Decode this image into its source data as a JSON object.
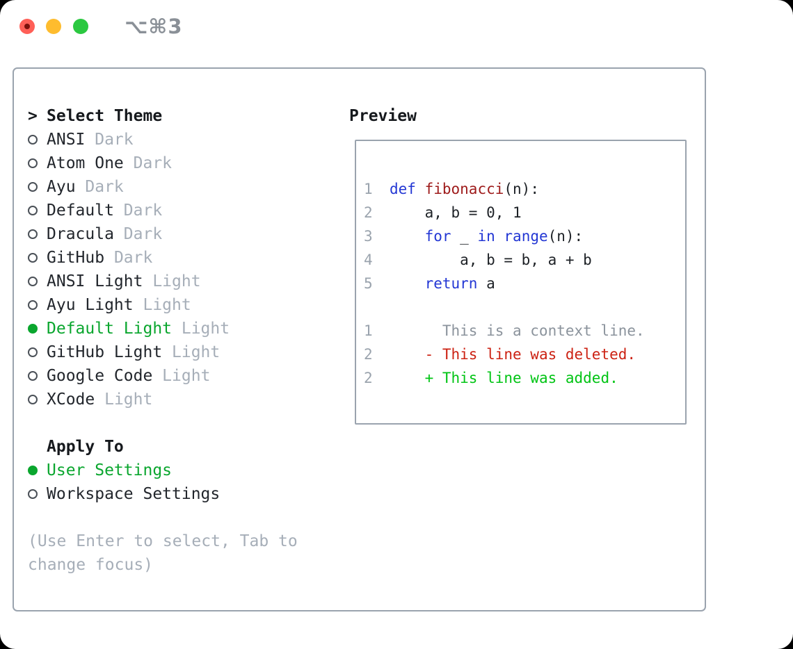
{
  "titlebar": {
    "shortcut": "⌥⌘3",
    "traffic_lights": [
      "close-red",
      "minimize-yellow",
      "zoom-green"
    ]
  },
  "colors": {
    "selection_green": "#0aa62e",
    "added_green": "#00c414",
    "deleted_red": "#cc2213",
    "keyword_blue": "#2337d4",
    "function_red": "#9e1b1b",
    "muted_gray": "#a6aeb8",
    "line_number_gray": "#9aa3ad",
    "panel_border": "#9aa3ae",
    "traffic_red": "#ff5f57",
    "traffic_yellow": "#febc2e",
    "traffic_green": "#2bc840"
  },
  "theme_picker": {
    "heading_marker": ">",
    "heading": "Select Theme",
    "themes": [
      {
        "name": "ANSI",
        "variant": "Dark",
        "selected": false
      },
      {
        "name": "Atom One",
        "variant": "Dark",
        "selected": false
      },
      {
        "name": "Ayu",
        "variant": "Dark",
        "selected": false
      },
      {
        "name": "Default",
        "variant": "Dark",
        "selected": false
      },
      {
        "name": "Dracula",
        "variant": "Dark",
        "selected": false
      },
      {
        "name": "GitHub",
        "variant": "Dark",
        "selected": false
      },
      {
        "name": "ANSI Light",
        "variant": "Light",
        "selected": false
      },
      {
        "name": "Ayu Light",
        "variant": "Light",
        "selected": false
      },
      {
        "name": "Default Light",
        "variant": "Light",
        "selected": true
      },
      {
        "name": "GitHub Light",
        "variant": "Light",
        "selected": false
      },
      {
        "name": "Google Code",
        "variant": "Light",
        "selected": false
      },
      {
        "name": "XCode",
        "variant": "Light",
        "selected": false
      }
    ]
  },
  "apply_to": {
    "heading": "Apply To",
    "options": [
      {
        "label": "User Settings",
        "selected": true
      },
      {
        "label": "Workspace Settings",
        "selected": false
      }
    ]
  },
  "hint_lines": [
    "(Use Enter to select, Tab to",
    "change focus)"
  ],
  "preview": {
    "heading": "Preview",
    "code_lines": [
      {
        "num": "1",
        "segments": [
          {
            "t": "def",
            "c": "keyword"
          },
          {
            "t": " ",
            "c": "plain"
          },
          {
            "t": "fibonacci",
            "c": "function"
          },
          {
            "t": "(n):",
            "c": "plain"
          }
        ]
      },
      {
        "num": "2",
        "segments": [
          {
            "t": "    a, b = 0, 1",
            "c": "plain"
          }
        ]
      },
      {
        "num": "3",
        "segments": [
          {
            "t": "    ",
            "c": "plain"
          },
          {
            "t": "for",
            "c": "keyword"
          },
          {
            "t": " _ ",
            "c": "plain"
          },
          {
            "t": "in",
            "c": "keyword"
          },
          {
            "t": " ",
            "c": "plain"
          },
          {
            "t": "range",
            "c": "keyword"
          },
          {
            "t": "(n):",
            "c": "plain"
          }
        ]
      },
      {
        "num": "4",
        "segments": [
          {
            "t": "        a, b = b, a + b",
            "c": "plain"
          }
        ]
      },
      {
        "num": "5",
        "segments": [
          {
            "t": "    ",
            "c": "plain"
          },
          {
            "t": "return",
            "c": "keyword"
          },
          {
            "t": " a",
            "c": "plain"
          }
        ]
      },
      {
        "num": "",
        "segments": []
      },
      {
        "num": "1",
        "segments": [
          {
            "t": "      This is a context line.",
            "c": "context"
          }
        ]
      },
      {
        "num": "2",
        "segments": [
          {
            "t": "    ",
            "c": "plain"
          },
          {
            "t": "- This line was deleted.",
            "c": "deleted"
          }
        ]
      },
      {
        "num": "2",
        "segments": [
          {
            "t": "    ",
            "c": "plain"
          },
          {
            "t": "+ This line was added.",
            "c": "added"
          }
        ]
      }
    ]
  }
}
